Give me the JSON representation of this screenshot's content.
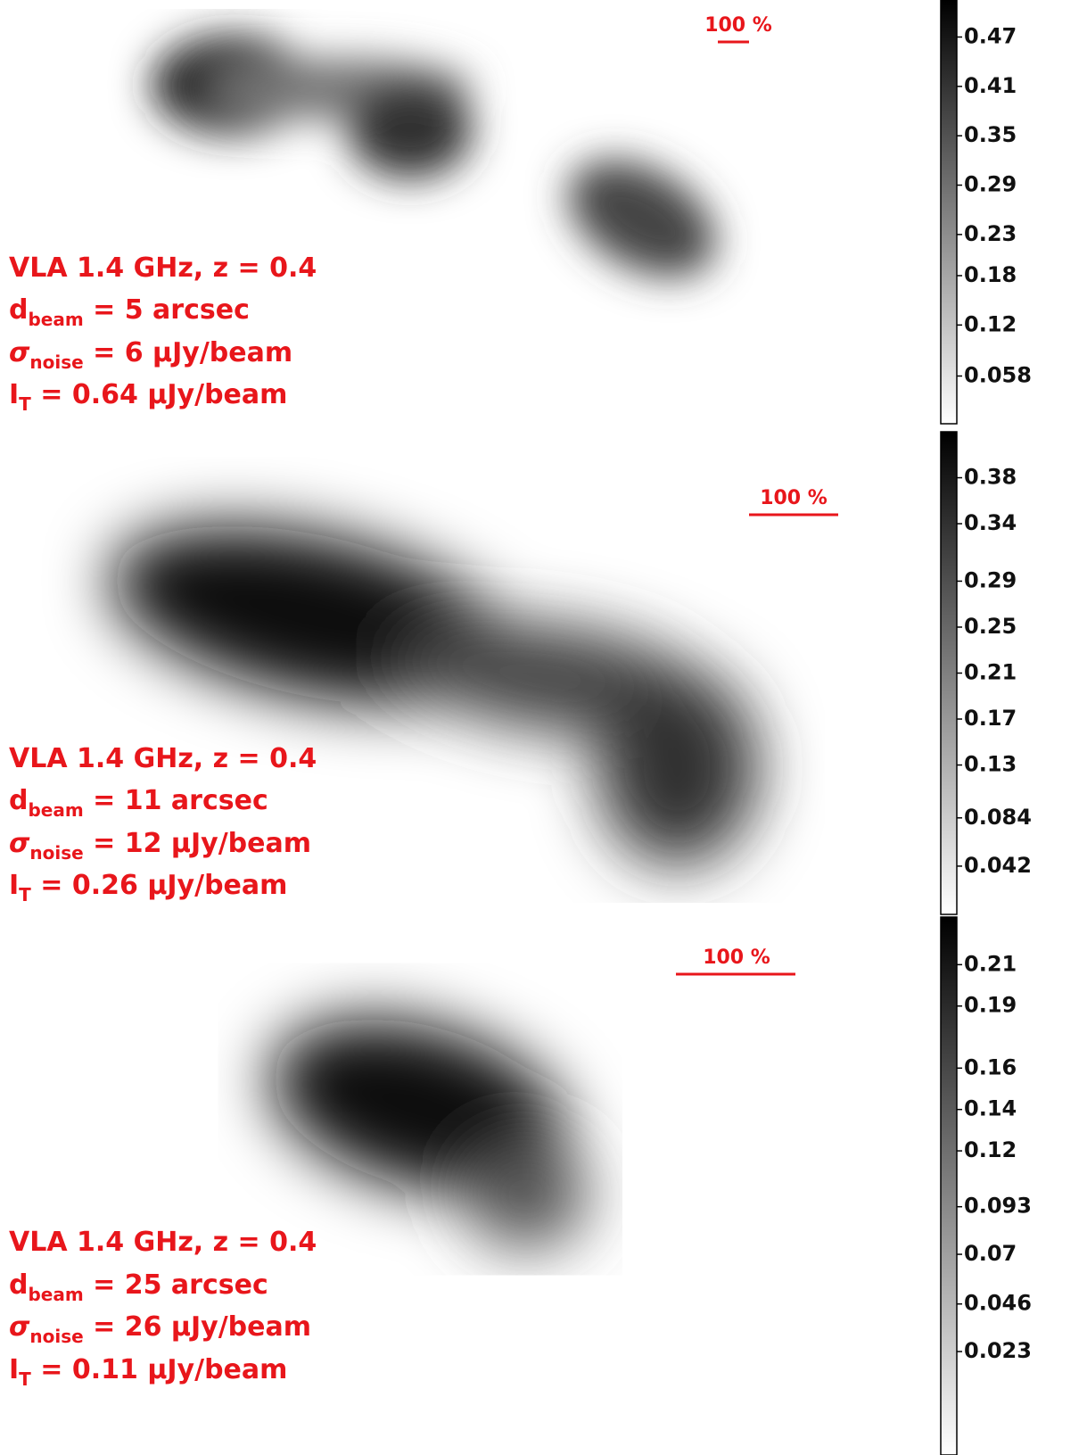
{
  "chart_data": [
    {
      "type": "image",
      "scale_label": "100 %",
      "annotations": [
        {
          "text": "VLA 1.4 GHz,  z = 0.4"
        },
        {
          "symbol": "d",
          "subscript": "beam",
          "text": " = 5 arcsec"
        },
        {
          "symbol": "σ",
          "subscript": "noise",
          "text": " = 6 μJy/beam"
        },
        {
          "symbol": "I",
          "subscript": "T",
          "text": "  =  0.64 μJy/beam"
        }
      ],
      "ylim": [
        0,
        0.515
      ],
      "yticks": [
        0.058,
        0.12,
        0.18,
        0.23,
        0.29,
        0.35,
        0.41,
        0.47
      ]
    },
    {
      "type": "image",
      "scale_label": "100 %",
      "annotations": [
        {
          "text": "VLA 1.4 GHz,  z = 0.4"
        },
        {
          "symbol": "d",
          "subscript": "beam",
          "text": " = 11 arcsec"
        },
        {
          "symbol": "σ",
          "subscript": "noise",
          "text": " = 12 μJy/beam"
        },
        {
          "symbol": "I",
          "subscript": "T",
          "text": "  =  0.26 μJy/beam"
        }
      ],
      "ylim": [
        0,
        0.42
      ],
      "yticks": [
        0.042,
        0.084,
        0.13,
        0.17,
        0.21,
        0.25,
        0.29,
        0.34,
        0.38
      ]
    },
    {
      "type": "image",
      "scale_label": "100 %",
      "annotations": [
        {
          "text": "VLA 1.4 GHz,  z = 0.4"
        },
        {
          "symbol": "d",
          "subscript": "beam",
          "text": " = 25 arcsec"
        },
        {
          "symbol": "σ",
          "subscript": "noise",
          "text": " = 26 μJy/beam"
        },
        {
          "symbol": "I",
          "subscript": "T",
          "text": "  =  0.11 μJy/beam"
        }
      ],
      "ylim": [
        -0.027,
        0.233
      ],
      "yticks": [
        0.023,
        0.046,
        0.07,
        0.093,
        0.12,
        0.14,
        0.16,
        0.19,
        0.21
      ]
    }
  ]
}
